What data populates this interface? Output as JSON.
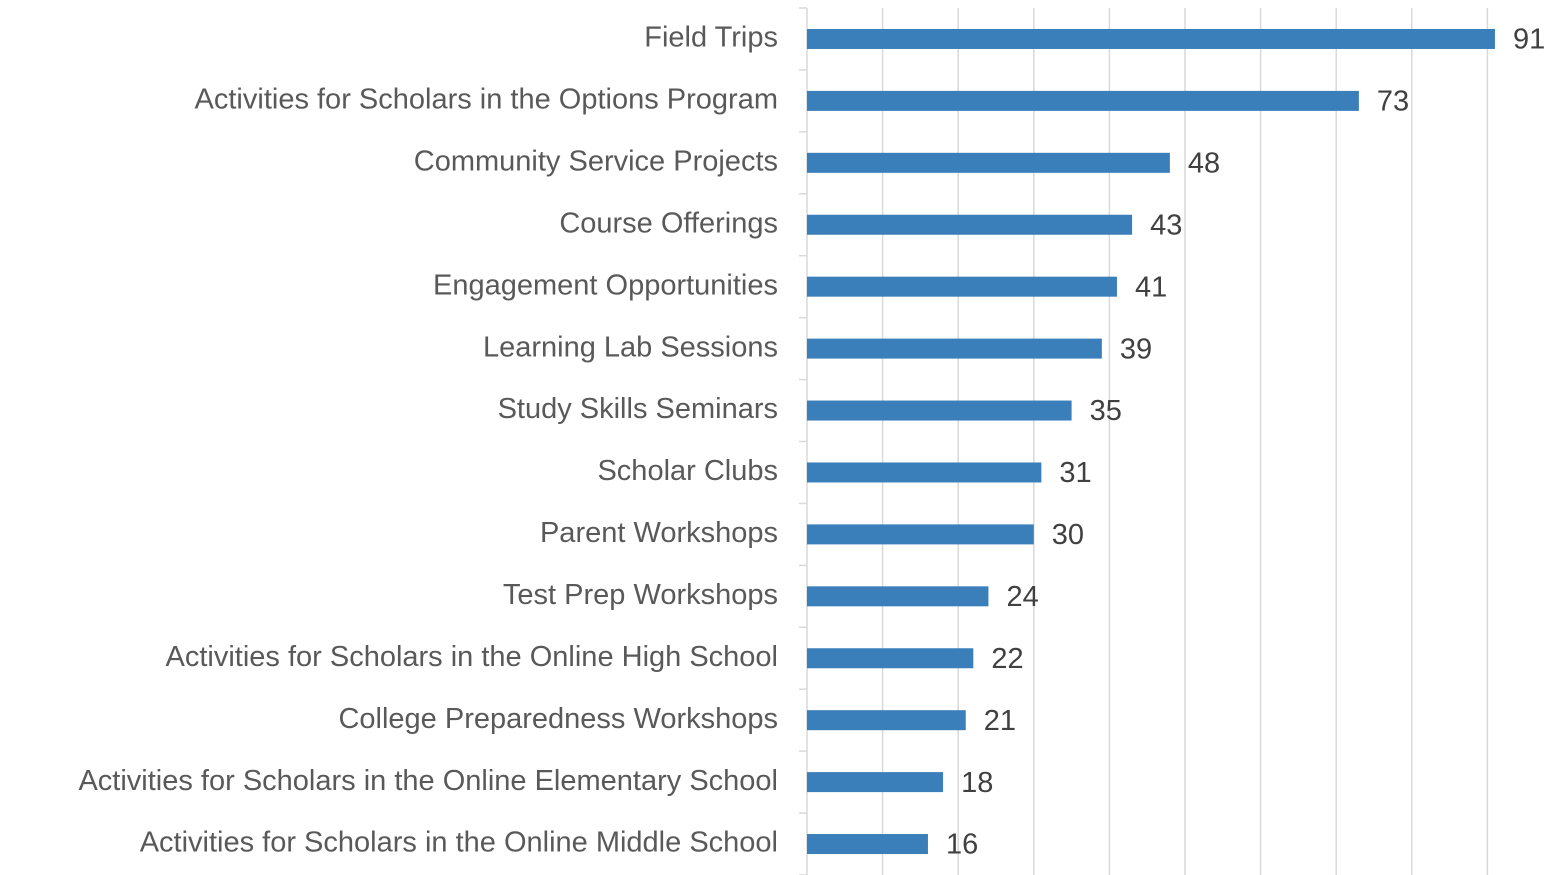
{
  "chart_data": {
    "type": "hbar",
    "categories": [
      "Field Trips",
      "Activities for Scholars in the Options Program",
      "Community Service Projects",
      "Course Offerings",
      "Engagement Opportunities",
      "Learning Lab Sessions",
      "Study Skills Seminars",
      "Scholar Clubs",
      "Parent Workshops",
      "Test Prep Workshops",
      "Activities for Scholars in the Online High School",
      "College Preparedness Workshops",
      "Activities for Scholars in the Online Elementary School",
      "Activities for Scholars in the Online Middle School"
    ],
    "values": [
      91,
      73,
      48,
      43,
      41,
      39,
      35,
      31,
      30,
      24,
      22,
      21,
      18,
      16
    ],
    "color": "#3a7fba",
    "xlim": [
      0,
      100
    ],
    "xticks": [
      10,
      20,
      30,
      40,
      50,
      60,
      70,
      80,
      90
    ],
    "grid": true
  }
}
